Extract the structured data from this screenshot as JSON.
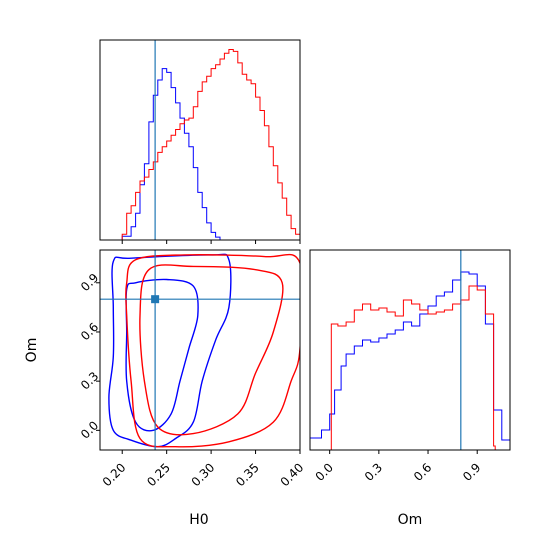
{
  "chart_data": [
    {
      "panel": "H0 marginal",
      "type": "histogram",
      "xlim": [
        0.175,
        0.4
      ],
      "truth": 0.237,
      "series": [
        {
          "color": "#0000ff",
          "x": [
            0.175,
            0.2,
            0.21,
            0.215,
            0.22,
            0.225,
            0.23,
            0.235,
            0.24,
            0.245,
            0.25,
            0.255,
            0.26,
            0.265,
            0.27,
            0.275,
            0.28,
            0.285,
            0.29,
            0.295,
            0.3,
            0.305,
            0.31
          ],
          "values": [
            0,
            0.02,
            0.07,
            0.14,
            0.29,
            0.4,
            0.62,
            0.76,
            0.84,
            0.9,
            0.88,
            0.8,
            0.72,
            0.64,
            0.56,
            0.49,
            0.38,
            0.25,
            0.17,
            0.09,
            0.04,
            0.015,
            0
          ]
        },
        {
          "color": "#ff0000",
          "x": [
            0.2,
            0.205,
            0.21,
            0.215,
            0.22,
            0.225,
            0.23,
            0.235,
            0.24,
            0.245,
            0.25,
            0.255,
            0.26,
            0.265,
            0.27,
            0.275,
            0.28,
            0.285,
            0.29,
            0.295,
            0.3,
            0.305,
            0.31,
            0.315,
            0.32,
            0.325,
            0.33,
            0.335,
            0.34,
            0.345,
            0.35,
            0.355,
            0.36,
            0.365,
            0.37,
            0.375,
            0.38,
            0.385,
            0.39,
            0.395,
            0.4
          ],
          "values": [
            0.03,
            0.14,
            0.18,
            0.25,
            0.31,
            0.33,
            0.37,
            0.41,
            0.46,
            0.49,
            0.52,
            0.55,
            0.58,
            0.61,
            0.63,
            0.64,
            0.7,
            0.78,
            0.83,
            0.86,
            0.9,
            0.92,
            0.95,
            0.98,
            1.0,
            0.99,
            0.93,
            0.87,
            0.84,
            0.82,
            0.75,
            0.68,
            0.6,
            0.49,
            0.39,
            0.3,
            0.22,
            0.13,
            0.06,
            0.03,
            0
          ]
        }
      ]
    },
    {
      "panel": "Om marginal",
      "type": "histogram",
      "xlim": [
        -0.12,
        1.1
      ],
      "truth": 0.8,
      "series": [
        {
          "color": "#0000ff",
          "x": [
            -0.12,
            -0.05,
            0.0,
            0.03,
            0.07,
            0.1,
            0.15,
            0.2,
            0.25,
            0.3,
            0.35,
            0.4,
            0.45,
            0.5,
            0.55,
            0.6,
            0.65,
            0.7,
            0.75,
            0.8,
            0.85,
            0.9,
            0.95,
            1.0,
            1.05,
            1.1
          ],
          "values": [
            0.06,
            0.1,
            0.18,
            0.3,
            0.42,
            0.48,
            0.52,
            0.55,
            0.54,
            0.56,
            0.58,
            0.6,
            0.64,
            0.62,
            0.68,
            0.72,
            0.77,
            0.79,
            0.85,
            0.89,
            0.88,
            0.82,
            0.63,
            0.2,
            0.05,
            0
          ]
        },
        {
          "color": "#ff0000",
          "x": [
            0.0,
            0.01,
            0.05,
            0.1,
            0.15,
            0.2,
            0.25,
            0.3,
            0.35,
            0.4,
            0.45,
            0.5,
            0.55,
            0.6,
            0.65,
            0.7,
            0.75,
            0.8,
            0.85,
            0.9,
            0.95,
            1.0,
            1.01
          ],
          "values": [
            0,
            0.63,
            0.62,
            0.64,
            0.7,
            0.73,
            0.7,
            0.71,
            0.69,
            0.67,
            0.75,
            0.73,
            0.7,
            0.68,
            0.69,
            0.7,
            0.73,
            0.75,
            0.82,
            0.8,
            0.68,
            0.02,
            0
          ]
        }
      ]
    },
    {
      "panel": "Om vs H0",
      "type": "contour",
      "xlabel": "H0",
      "ylabel": "Om",
      "xlim": [
        0.175,
        0.4
      ],
      "ylim": [
        -0.12,
        1.1
      ],
      "xticks": [
        "0.20",
        "0.25",
        "0.30",
        "0.35",
        "0.40"
      ],
      "yticks": [
        "0.0",
        "0.3",
        "0.6",
        "0.9"
      ],
      "truth": {
        "x": 0.237,
        "y": 0.8
      },
      "series": [
        {
          "color": "#0000ff",
          "outer": [
            [
              0.19,
              1.03
            ],
            [
              0.21,
              1.05
            ],
            [
              0.3,
              1.07
            ],
            [
              0.32,
              1.04
            ],
            [
              0.32,
              0.75
            ],
            [
              0.305,
              0.55
            ],
            [
              0.29,
              0.3
            ],
            [
              0.28,
              0.05
            ],
            [
              0.26,
              -0.05
            ],
            [
              0.24,
              -0.1
            ],
            [
              0.21,
              -0.06
            ],
            [
              0.19,
              0.0
            ],
            [
              0.185,
              0.2
            ],
            [
              0.19,
              0.45
            ],
            [
              0.19,
              0.75
            ]
          ],
          "inner": [
            [
              0.205,
              0.86
            ],
            [
              0.215,
              0.9
            ],
            [
              0.25,
              0.92
            ],
            [
              0.28,
              0.88
            ],
            [
              0.285,
              0.7
            ],
            [
              0.275,
              0.5
            ],
            [
              0.265,
              0.3
            ],
            [
              0.255,
              0.1
            ],
            [
              0.235,
              0.0
            ],
            [
              0.215,
              0.05
            ],
            [
              0.205,
              0.3
            ],
            [
              0.205,
              0.6
            ]
          ]
        },
        {
          "color": "#ff0000",
          "outer": [
            [
              0.215,
              1.04
            ],
            [
              0.27,
              1.07
            ],
            [
              0.36,
              1.06
            ],
            [
              0.4,
              1.02
            ],
            [
              0.4,
              0.5
            ],
            [
              0.39,
              0.3
            ],
            [
              0.37,
              0.05
            ],
            [
              0.32,
              -0.07
            ],
            [
              0.26,
              -0.1
            ],
            [
              0.22,
              -0.05
            ],
            [
              0.21,
              0.3
            ],
            [
              0.205,
              0.7
            ],
            [
              0.205,
              0.9
            ]
          ],
          "inner": [
            [
              0.23,
              0.98
            ],
            [
              0.28,
              1.0
            ],
            [
              0.35,
              0.98
            ],
            [
              0.38,
              0.9
            ],
            [
              0.37,
              0.6
            ],
            [
              0.35,
              0.35
            ],
            [
              0.33,
              0.1
            ],
            [
              0.28,
              -0.02
            ],
            [
              0.24,
              0.02
            ],
            [
              0.225,
              0.3
            ],
            [
              0.22,
              0.7
            ]
          ]
        }
      ]
    }
  ]
}
